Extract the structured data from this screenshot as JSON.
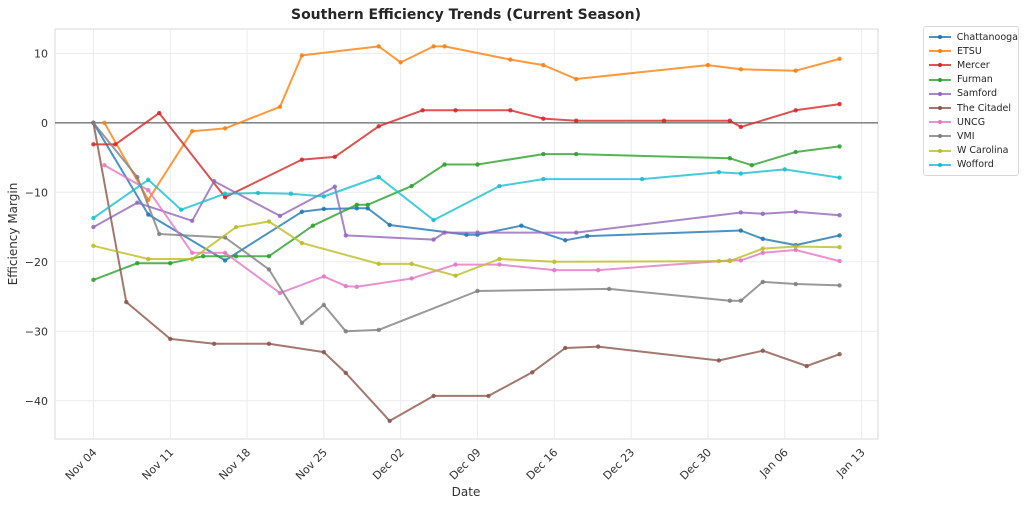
{
  "chart_data": {
    "type": "line",
    "title": "Southern Efficiency Trends (Current Season)",
    "xlabel": "Date",
    "ylabel": "Efficiency Margin",
    "x_unit": "days since Nov 04",
    "xlim": [
      -3.5,
      71.5
    ],
    "ylim": [
      -45.5,
      13.5
    ],
    "grid": true,
    "legend_position": "outside-top-right",
    "zero_line": true,
    "x_ticks": [
      {
        "day": 0,
        "label": "Nov 04"
      },
      {
        "day": 7,
        "label": "Nov 11"
      },
      {
        "day": 14,
        "label": "Nov 18"
      },
      {
        "day": 21,
        "label": "Nov 25"
      },
      {
        "day": 28,
        "label": "Dec 02"
      },
      {
        "day": 35,
        "label": "Dec 09"
      },
      {
        "day": 42,
        "label": "Dec 16"
      },
      {
        "day": 49,
        "label": "Dec 23"
      },
      {
        "day": 56,
        "label": "Dec 30"
      },
      {
        "day": 63,
        "label": "Jan 06"
      },
      {
        "day": 70,
        "label": "Jan 13"
      }
    ],
    "y_ticks": [
      {
        "value": 10,
        "label": "10"
      },
      {
        "value": 0,
        "label": "0"
      },
      {
        "value": -10,
        "label": "−10"
      },
      {
        "value": -20,
        "label": "−20"
      },
      {
        "value": -30,
        "label": "−30"
      },
      {
        "value": -40,
        "label": "−40"
      }
    ],
    "series": [
      {
        "name": "Chattanooga",
        "color": "#1f77b4",
        "x": [
          0,
          5,
          12,
          19,
          21,
          24,
          25,
          27,
          34,
          35,
          39,
          43,
          45,
          59,
          61,
          64,
          68
        ],
        "y": [
          0,
          -13.2,
          -19.8,
          -12.8,
          -12.4,
          -12.3,
          -12.3,
          -14.7,
          -16.1,
          -16.1,
          -14.8,
          -16.9,
          -16.3,
          -15.5,
          -16.7,
          -17.6,
          -16.2
        ]
      },
      {
        "name": "ETSU",
        "color": "#ff7f0e",
        "x": [
          1,
          5,
          9,
          12,
          17,
          19,
          26,
          28,
          31,
          32,
          38,
          41,
          44,
          56,
          59,
          64,
          68
        ],
        "y": [
          0,
          -11.1,
          -1.2,
          -0.8,
          2.3,
          9.7,
          11,
          8.7,
          11,
          11,
          9.1,
          8.3,
          6.3,
          8.3,
          7.7,
          7.5,
          9.2
        ]
      },
      {
        "name": "Mercer",
        "color": "#d62728",
        "x": [
          0,
          2,
          6,
          12,
          19,
          22,
          26,
          30,
          33,
          38,
          41,
          44,
          52,
          58,
          59,
          64,
          68
        ],
        "y": [
          -3.1,
          -3.1,
          1.4,
          -10.7,
          -5.3,
          -4.9,
          -0.5,
          1.8,
          1.8,
          1.8,
          0.6,
          0.3,
          0.3,
          0.3,
          -0.6,
          1.8,
          2.7
        ]
      },
      {
        "name": "Furman",
        "color": "#2ca02c",
        "x": [
          0,
          4,
          7,
          10,
          13,
          16,
          20,
          24,
          25,
          29,
          32,
          35,
          41,
          44,
          58,
          60,
          64,
          68
        ],
        "y": [
          -22.6,
          -20.2,
          -20.2,
          -19.2,
          -19.2,
          -19.2,
          -14.8,
          -11.8,
          -11.8,
          -9.1,
          -6,
          -6,
          -4.5,
          -4.5,
          -5.1,
          -6.1,
          -4.2,
          -3.4
        ]
      },
      {
        "name": "Samford",
        "color": "#9467bd",
        "x": [
          0,
          4,
          9,
          11,
          17,
          22,
          23,
          31,
          32,
          35,
          44,
          59,
          61,
          64,
          68
        ],
        "y": [
          -15,
          -11.5,
          -14.1,
          -8.4,
          -13.4,
          -9.2,
          -16.2,
          -16.8,
          -15.8,
          -15.8,
          -15.8,
          -12.9,
          -13.1,
          -12.8,
          -13.3
        ]
      },
      {
        "name": "The Citadel",
        "color": "#8c564b",
        "x": [
          0,
          3,
          7,
          11,
          16,
          21,
          23,
          27,
          31,
          36,
          40,
          43,
          46,
          57,
          61,
          65,
          68
        ],
        "y": [
          0,
          -25.8,
          -31.1,
          -31.8,
          -31.8,
          -33,
          -36,
          -42.9,
          -39.3,
          -39.3,
          -35.9,
          -32.4,
          -32.2,
          -34.2,
          -32.8,
          -35,
          -33.3
        ]
      },
      {
        "name": "UNCG",
        "color": "#e377c2",
        "x": [
          1,
          5,
          9,
          12,
          17,
          21,
          23,
          24,
          29,
          33,
          37,
          42,
          46,
          58,
          59,
          61,
          64,
          68
        ],
        "y": [
          -6.1,
          -9.7,
          -18.7,
          -18.7,
          -24.5,
          -22.1,
          -23.5,
          -23.6,
          -22.4,
          -20.4,
          -20.4,
          -21.2,
          -21.2,
          -19.8,
          -19.8,
          -18.7,
          -18.3,
          -19.9
        ]
      },
      {
        "name": "VMI",
        "color": "#7f7f7f",
        "x": [
          0,
          4,
          6,
          12,
          16,
          19,
          21,
          23,
          26,
          35,
          47,
          58,
          59,
          61,
          64,
          68
        ],
        "y": [
          0,
          -7.8,
          -16,
          -16.5,
          -21.1,
          -28.8,
          -26.2,
          -30,
          -29.8,
          -24.2,
          -23.9,
          -25.6,
          -25.6,
          -22.9,
          -23.2,
          -23.4
        ]
      },
      {
        "name": "W Carolina",
        "color": "#bcbd22",
        "x": [
          0,
          5,
          9,
          13,
          16,
          19,
          26,
          29,
          33,
          37,
          42,
          57,
          58,
          61,
          64,
          68
        ],
        "y": [
          -17.7,
          -19.6,
          -19.6,
          -15,
          -14.2,
          -17.3,
          -20.3,
          -20.3,
          -22,
          -19.6,
          -20,
          -19.9,
          -19.9,
          -18.1,
          -17.8,
          -17.9
        ]
      },
      {
        "name": "Wofford",
        "color": "#17becf",
        "x": [
          0,
          5,
          8,
          12,
          15,
          18,
          21,
          26,
          31,
          37,
          41,
          50,
          57,
          59,
          63,
          68
        ],
        "y": [
          -13.7,
          -8.2,
          -12.5,
          -10.2,
          -10.1,
          -10.2,
          -10.6,
          -7.8,
          -14,
          -9.1,
          -8.1,
          -8.1,
          -7.1,
          -7.3,
          -6.7,
          -7.9
        ]
      }
    ]
  }
}
